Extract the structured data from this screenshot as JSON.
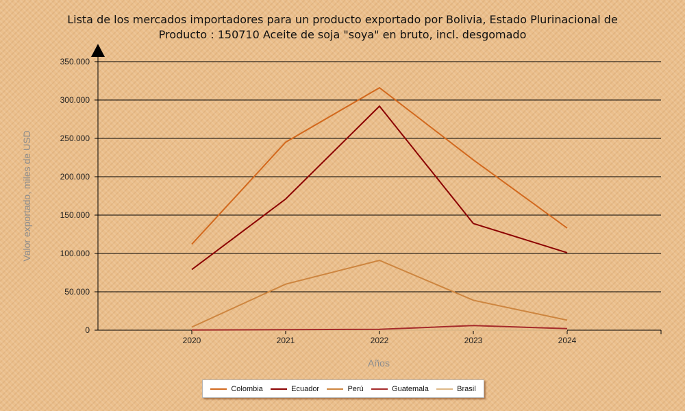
{
  "chart_data": {
    "type": "line",
    "title": "Lista de los mercados importadores para un producto exportado por Bolivia, Estado Plurinacional de",
    "subtitle": "Producto : 150710 Aceite de soja \"soya\" en bruto, incl. desgomado",
    "xlabel": "Años",
    "ylabel": "Valor exportado, miles de USD",
    "categories": [
      "2020",
      "2021",
      "2022",
      "2023",
      "2024"
    ],
    "ylim": [
      0,
      350000
    ],
    "yticks": [
      0,
      50000,
      100000,
      150000,
      200000,
      250000,
      300000,
      350000
    ],
    "ytick_labels": [
      "0",
      "50.000",
      "100.000",
      "150.000",
      "200.000",
      "250.000",
      "300.000",
      "350.000"
    ],
    "grid": true,
    "legend_position": "bottom",
    "series": [
      {
        "name": "Colombia",
        "color": "#d2691e",
        "values": [
          112000,
          245000,
          316000,
          222000,
          133000
        ]
      },
      {
        "name": "Ecuador",
        "color": "#8b0000",
        "values": [
          79000,
          171000,
          292000,
          139000,
          101000
        ]
      },
      {
        "name": "Perú",
        "color": "#cd853f",
        "values": [
          4000,
          60000,
          91000,
          39000,
          13000
        ]
      },
      {
        "name": "Guatemala",
        "color": "#a52a2a",
        "values": [
          300,
          600,
          1200,
          6000,
          2000
        ]
      },
      {
        "name": "Brasil",
        "color": "#deb887",
        "values": [
          0,
          0,
          0,
          0,
          0
        ]
      }
    ]
  }
}
